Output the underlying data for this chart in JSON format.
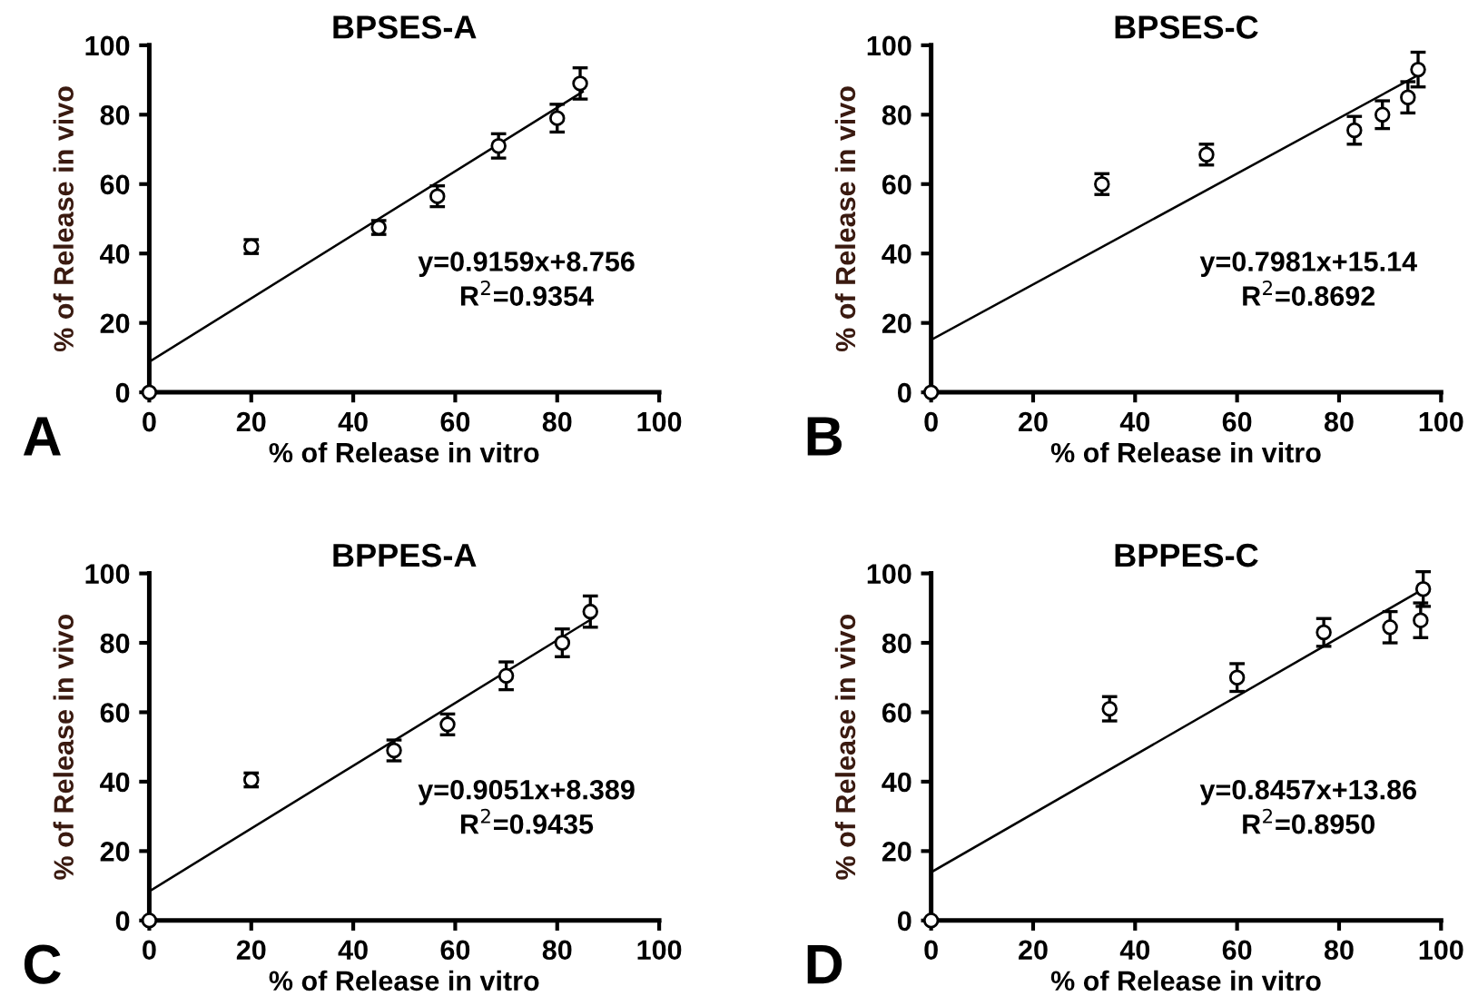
{
  "chart_data": [
    {
      "type": "scatter",
      "title": "BPSES-A",
      "xlabel": "% of Release in vitro",
      "ylabel": "% of Release in vivo",
      "xlim": [
        0,
        100
      ],
      "ylim": [
        0,
        100
      ],
      "xticks": [
        0,
        20,
        40,
        60,
        80,
        100
      ],
      "yticks": [
        0,
        20,
        40,
        60,
        80,
        100
      ],
      "grid": false,
      "series": [
        {
          "marker": "circle",
          "color": "#000000",
          "x": [
            0,
            20,
            45,
            56.5,
            68.5,
            80,
            84.5
          ],
          "values": [
            0,
            42,
            47.5,
            56.5,
            71,
            79,
            89
          ],
          "errors": [
            null,
            2,
            2,
            3,
            3.5,
            4,
            4.5
          ]
        },
        {
          "type": "line",
          "color": "#000000",
          "x": [
            0,
            85
          ],
          "values": [
            8.8,
            86.6
          ]
        }
      ],
      "annotations": [
        "y=0.9159x+8.756",
        "R$^{2}$=0.9354",
        "A"
      ]
    },
    {
      "type": "scatter",
      "title": "BPSES-C",
      "xlabel": "% of Release in vitro",
      "ylabel": "% of Release in vivo",
      "xlim": [
        0,
        100
      ],
      "ylim": [
        0,
        100
      ],
      "xticks": [
        0,
        20,
        40,
        60,
        80,
        100
      ],
      "yticks": [
        0,
        20,
        40,
        60,
        80,
        100
      ],
      "grid": false,
      "series": [
        {
          "marker": "circle",
          "color": "#000000",
          "x": [
            0,
            33.5,
            54,
            83,
            88.5,
            93.5,
            95.5
          ],
          "values": [
            0,
            60,
            68.5,
            75.5,
            80,
            85,
            93
          ],
          "errors": [
            null,
            3,
            3,
            4,
            4,
            4.5,
            5
          ]
        },
        {
          "type": "line",
          "color": "#000000",
          "x": [
            0,
            96
          ],
          "values": [
            15.1,
            91.8
          ]
        }
      ],
      "annotations": [
        "y=0.7981x+15.14",
        "R$^{2}$=0.8692",
        "B"
      ]
    },
    {
      "type": "scatter",
      "title": "BPPES-A",
      "xlabel": "% of Release in vitro",
      "ylabel": "% of Release in vivo",
      "xlim": [
        0,
        100
      ],
      "ylim": [
        0,
        100
      ],
      "xticks": [
        0,
        20,
        40,
        60,
        80,
        100
      ],
      "yticks": [
        0,
        20,
        40,
        60,
        80,
        100
      ],
      "grid": false,
      "series": [
        {
          "marker": "circle",
          "color": "#000000",
          "x": [
            0,
            20,
            48,
            58.5,
            70,
            81,
            86.5
          ],
          "values": [
            0,
            40.5,
            49,
            56.5,
            70.5,
            80,
            89
          ],
          "errors": [
            null,
            2,
            3,
            3,
            4,
            4,
            4.5
          ]
        },
        {
          "type": "line",
          "color": "#000000",
          "x": [
            0,
            87
          ],
          "values": [
            8.4,
            87.1
          ]
        }
      ],
      "annotations": [
        "y=0.9051x+8.389",
        "R$^{2}$=0.9435",
        "C"
      ]
    },
    {
      "type": "scatter",
      "title": "BPPES-C",
      "xlabel": "% of Release in vitro",
      "ylabel": "% of Release in vivo",
      "xlim": [
        0,
        100
      ],
      "ylim": [
        0,
        100
      ],
      "xticks": [
        0,
        20,
        40,
        60,
        80,
        100
      ],
      "yticks": [
        0,
        20,
        40,
        60,
        80,
        100
      ],
      "grid": false,
      "series": [
        {
          "marker": "circle",
          "color": "#000000",
          "x": [
            0,
            35,
            60,
            77,
            90,
            96,
            96.5
          ],
          "values": [
            0,
            61,
            70,
            83,
            84.5,
            86.5,
            95.5
          ],
          "errors": [
            null,
            3.5,
            4,
            4,
            4.5,
            5,
            5
          ]
        },
        {
          "type": "line",
          "color": "#000000",
          "x": [
            0,
            97
          ],
          "values": [
            13.9,
            95.9
          ]
        }
      ],
      "annotations": [
        "y=0.8457x+13.86",
        "R$^{2}$=0.8950",
        "D"
      ]
    }
  ]
}
